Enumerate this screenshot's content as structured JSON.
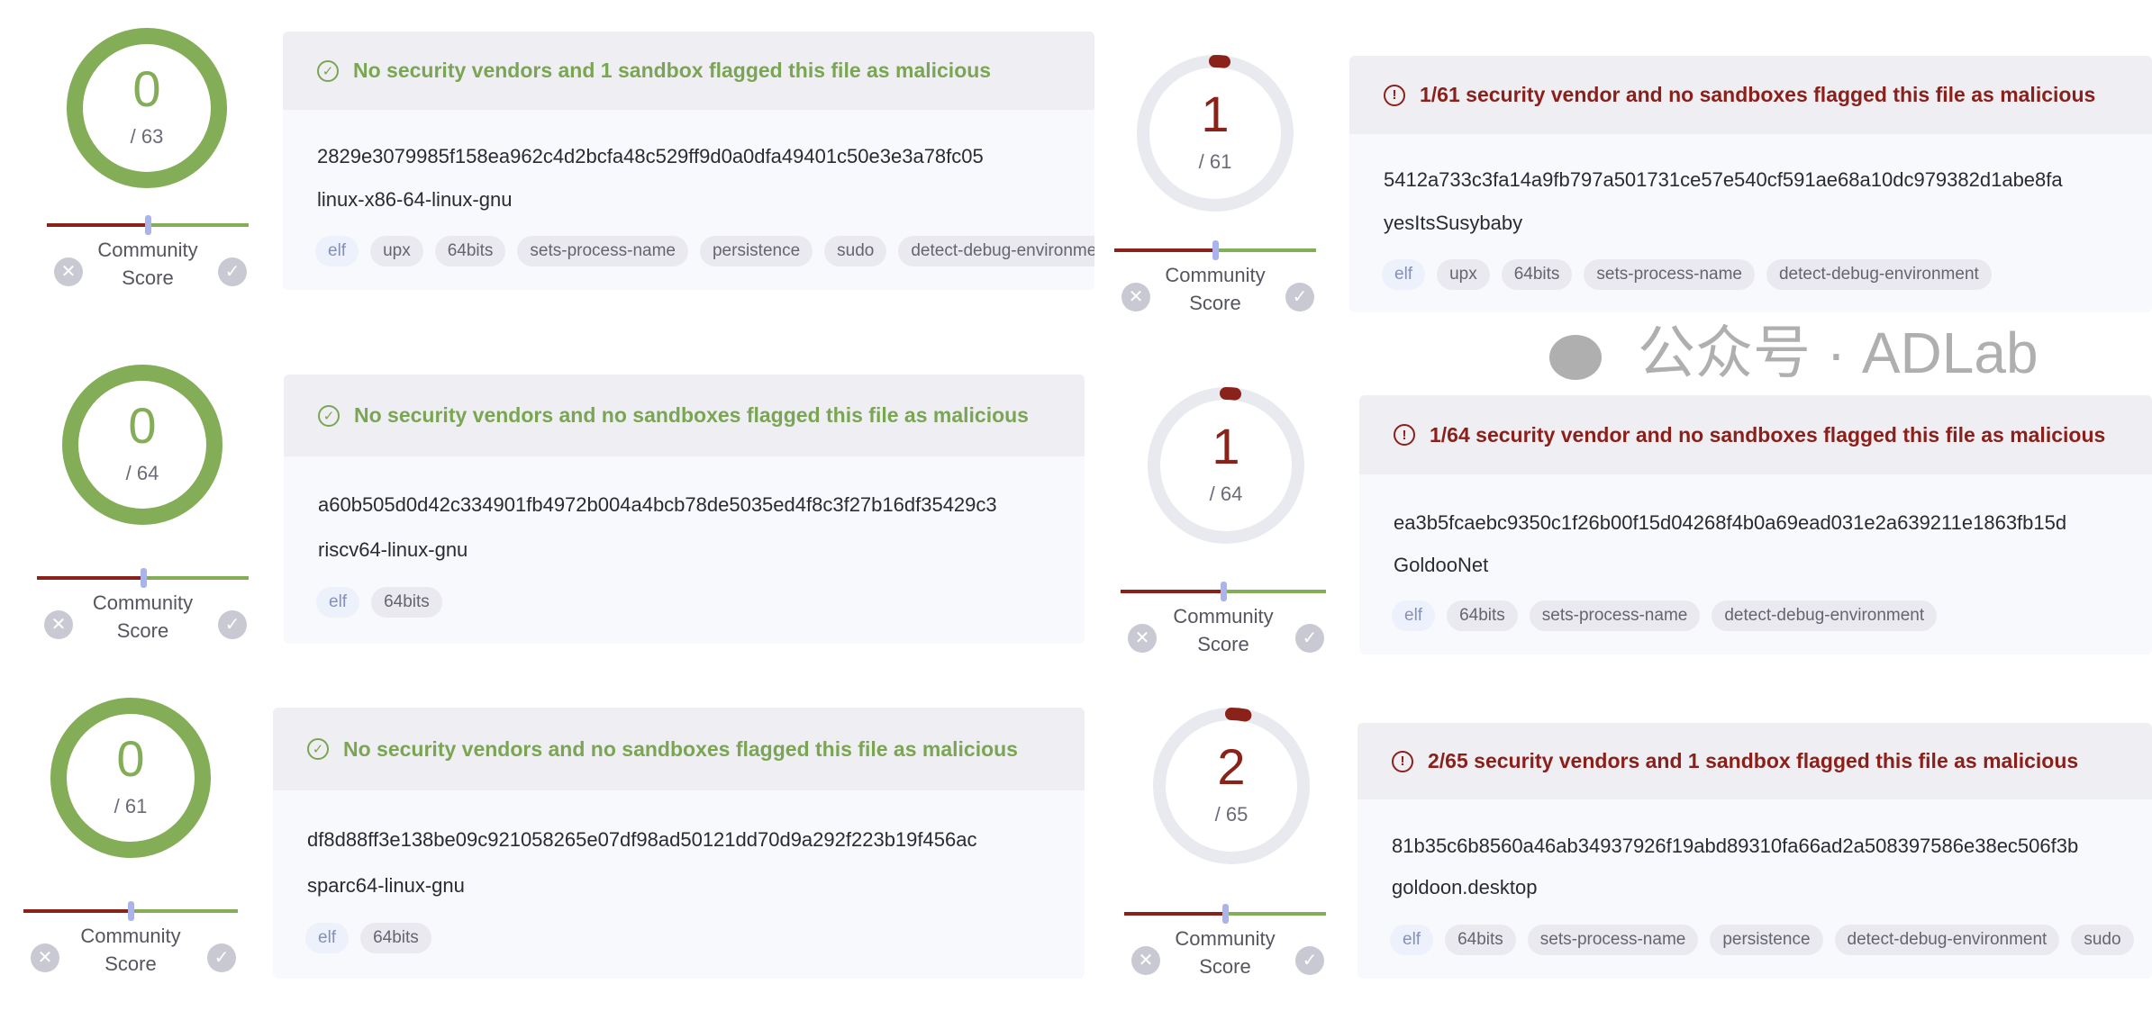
{
  "colors": {
    "clean": "#84ad57",
    "malicious": "#8b2219",
    "ring_bg": "#e9e9f0",
    "thumb": "#aab3ea"
  },
  "community_label_1": "Community",
  "community_label_2": "Score",
  "panels": [
    {
      "score": "0",
      "total": "/ 63",
      "verdict": "clean",
      "icon": "check-circle-icon",
      "message": "No security vendors and 1 sandbox flagged this file as malicious",
      "hash": "2829e3079985f158ea962c4d2bcfa48c529ff9d0a0dfa49401c50e3e3a78fc05",
      "name": "linux-x86-64-linux-gnu",
      "tags": [
        "elf",
        "upx",
        "64bits",
        "sets-process-name",
        "persistence",
        "sudo",
        "detect-debug-environment"
      ]
    },
    {
      "score": "1",
      "total": "/ 61",
      "verdict": "malicious",
      "icon": "alert-circle-icon",
      "message": "1/61 security vendor and no sandboxes flagged this file as malicious",
      "hash": "5412a733c3fa14a9fb797a501731ce57e540cf591ae68a10dc979382d1abe8fa",
      "name": "yesItsSusybaby",
      "tags": [
        "elf",
        "upx",
        "64bits",
        "sets-process-name",
        "detect-debug-environment"
      ]
    },
    {
      "score": "0",
      "total": "/ 64",
      "verdict": "clean",
      "icon": "check-circle-icon",
      "message": "No security vendors and no sandboxes flagged this file as malicious",
      "hash": "a60b505d0d42c334901fb4972b004a4bcb78de5035ed4f8c3f27b16df35429c3",
      "name": "riscv64-linux-gnu",
      "tags": [
        "elf",
        "64bits"
      ]
    },
    {
      "score": "1",
      "total": "/ 64",
      "verdict": "malicious",
      "icon": "alert-circle-icon",
      "message": "1/64 security vendor and no sandboxes flagged this file as malicious",
      "hash": "ea3b5fcaebc9350c1f26b00f15d04268f4b0a69ead031e2a639211e1863fb15d",
      "name": "GoldooNet",
      "tags": [
        "elf",
        "64bits",
        "sets-process-name",
        "detect-debug-environment"
      ]
    },
    {
      "score": "0",
      "total": "/ 61",
      "verdict": "clean",
      "icon": "check-circle-icon",
      "message": "No security vendors and no sandboxes flagged this file as malicious",
      "hash": "df8d88ff3e138be09c921058265e07df98ad50121dd70d9a292f223b19f456ac",
      "name": "sparc64-linux-gnu",
      "tags": [
        "elf",
        "64bits"
      ]
    },
    {
      "score": "2",
      "total": "/ 65",
      "verdict": "malicious",
      "icon": "alert-circle-icon",
      "message": "2/65 security vendors and 1 sandbox flagged this file as malicious",
      "hash": "81b35c6b8560a46ab34937926f19abd89310fa66ad2a508397586e38ec506f3b",
      "name": "goldoon.desktop",
      "tags": [
        "elf",
        "64bits",
        "sets-process-name",
        "persistence",
        "detect-debug-environment",
        "sudo"
      ]
    }
  ],
  "watermark": "公众号 · ADLab"
}
